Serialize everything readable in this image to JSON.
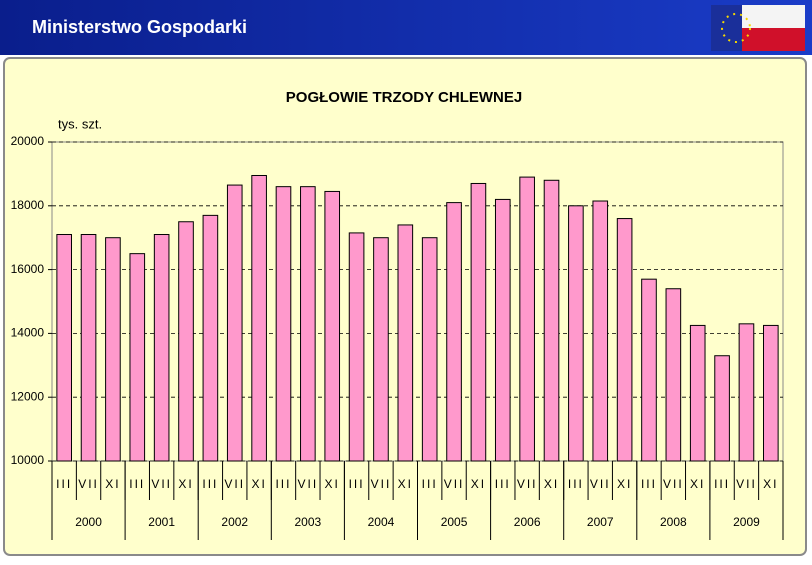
{
  "header": {
    "title": "Ministerstwo Gospodarki"
  },
  "chart_data": {
    "type": "bar",
    "title": "POGŁOWIE TRZODY  CHLEWNEJ",
    "y_label": "tys. szt.",
    "categories": [
      "III",
      "VII",
      "XI",
      "III",
      "VII",
      "XI",
      "III",
      "VII",
      "XI",
      "III",
      "VII",
      "XI",
      "III",
      "VII",
      "XI",
      "III",
      "VII",
      "XI",
      "III",
      "VII",
      "XI",
      "III",
      "VII",
      "XI",
      "III",
      "VII",
      "XI",
      "III",
      "VII",
      "XI"
    ],
    "year_groups": [
      "2000",
      "2001",
      "2002",
      "2003",
      "2004",
      "2005",
      "2006",
      "2007",
      "2008",
      "2009"
    ],
    "values": [
      17100,
      17100,
      17000,
      16500,
      17100,
      17500,
      17700,
      18650,
      18950,
      18600,
      18600,
      18450,
      17150,
      17000,
      17400,
      17000,
      18100,
      18700,
      18200,
      18900,
      18800,
      18000,
      18150,
      17600,
      15700,
      15400,
      14250,
      13300,
      14300,
      14250
    ],
    "color": "#ff99cc",
    "ylim": [
      10000,
      20000
    ],
    "yticks": [
      10000,
      12000,
      14000,
      16000,
      18000,
      20000
    ],
    "grid": true
  }
}
